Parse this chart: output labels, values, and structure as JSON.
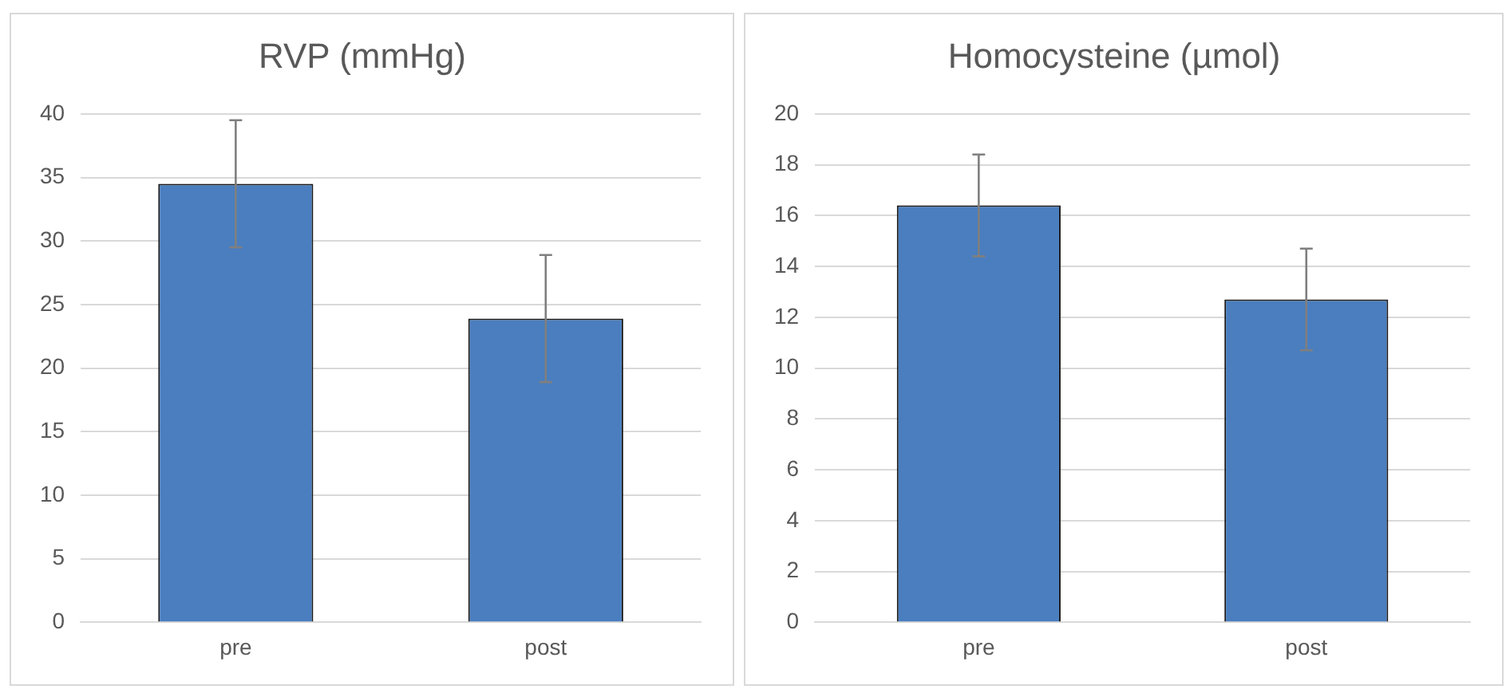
{
  "chart_data": [
    {
      "type": "bar",
      "title": "RVP (mmHg)",
      "categories": [
        "pre",
        "post"
      ],
      "values": [
        34.5,
        23.9
      ],
      "errors": [
        5,
        5
      ],
      "color": "#4a7ebf",
      "ylim": [
        0,
        40
      ],
      "yticks": [
        0,
        5,
        10,
        15,
        20,
        25,
        30,
        35,
        40
      ],
      "grid": "y",
      "legend": false
    },
    {
      "type": "bar",
      "title": "Homocysteine (µmol)",
      "categories": [
        "pre",
        "post"
      ],
      "values": [
        16.4,
        12.7
      ],
      "errors": [
        2,
        2
      ],
      "color": "#4a7ebf",
      "ylim": [
        0,
        20
      ],
      "yticks": [
        0,
        2,
        4,
        6,
        8,
        10,
        12,
        14,
        16,
        18,
        20
      ],
      "grid": "y",
      "legend": false
    }
  ]
}
